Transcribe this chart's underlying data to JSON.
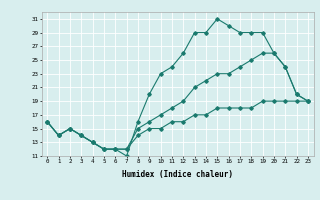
{
  "xlabel": "Humidex (Indice chaleur)",
  "ylabel": "",
  "bg_color": "#d8eeee",
  "grid_color": "#ffffff",
  "line_color": "#1a7a6e",
  "xlim": [
    -0.5,
    23.5
  ],
  "ylim": [
    11,
    32
  ],
  "xticks": [
    0,
    1,
    2,
    3,
    4,
    5,
    6,
    7,
    8,
    9,
    10,
    11,
    12,
    13,
    14,
    15,
    16,
    17,
    18,
    19,
    20,
    21,
    22,
    23
  ],
  "yticks": [
    11,
    13,
    15,
    17,
    19,
    21,
    23,
    25,
    27,
    29,
    31
  ],
  "line1_x": [
    0,
    1,
    2,
    3,
    4,
    5,
    6,
    7,
    8,
    9,
    10,
    11,
    12,
    13,
    14,
    15,
    16,
    17,
    18,
    19,
    20,
    21,
    22,
    23
  ],
  "line1_y": [
    16,
    14,
    15,
    14,
    13,
    12,
    12,
    11,
    16,
    20,
    23,
    24,
    26,
    29,
    29,
    31,
    30,
    29,
    29,
    29,
    26,
    24,
    20,
    19
  ],
  "line2_x": [
    0,
    1,
    2,
    3,
    4,
    5,
    6,
    7,
    8,
    9,
    10,
    11,
    12,
    13,
    14,
    15,
    16,
    17,
    18,
    19,
    20,
    21,
    22,
    23
  ],
  "line2_y": [
    16,
    14,
    15,
    14,
    13,
    12,
    12,
    12,
    15,
    16,
    17,
    18,
    19,
    21,
    22,
    23,
    23,
    24,
    25,
    26,
    26,
    24,
    20,
    19
  ],
  "line3_x": [
    0,
    1,
    2,
    3,
    4,
    5,
    6,
    7,
    8,
    9,
    10,
    11,
    12,
    13,
    14,
    15,
    16,
    17,
    18,
    19,
    20,
    21,
    22,
    23
  ],
  "line3_y": [
    16,
    14,
    15,
    14,
    13,
    12,
    12,
    12,
    14,
    15,
    15,
    16,
    16,
    17,
    17,
    18,
    18,
    18,
    18,
    19,
    19,
    19,
    19,
    19
  ],
  "marker": "D",
  "markersize": 1.8,
  "linewidth": 0.8
}
